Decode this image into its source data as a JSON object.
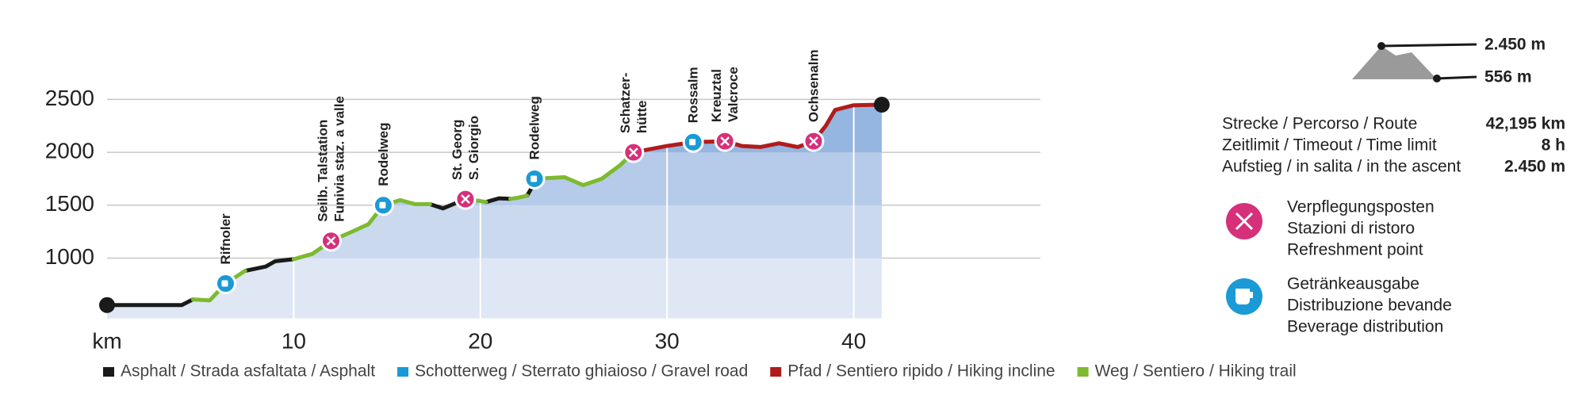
{
  "chart_data": {
    "type": "line",
    "x": [
      0,
      4,
      4.6,
      5.5,
      6.35,
      7.4,
      8.5,
      9,
      10,
      11,
      12,
      13,
      14,
      14.8,
      15.7,
      16.5,
      17.3,
      18,
      19.2,
      19.8,
      20.3,
      21,
      21.6,
      22,
      22.5,
      22.7,
      22.9,
      24.5,
      25.5,
      26.5,
      27.5,
      28.2,
      30,
      31.4,
      33.1,
      34,
      35,
      36,
      37,
      37.85,
      38.5,
      39,
      40,
      41.5
    ],
    "series": [
      {
        "name": "Asphalt / Strada asfaltata / Asphalt",
        "color": "#1a1a1a",
        "values": [
          556,
          556,
          610,
          null,
          null,
          880,
          920,
          970,
          990,
          null,
          null,
          null,
          null,
          null,
          null,
          null,
          1510,
          1470,
          1558,
          null,
          1530,
          1565,
          1560,
          null,
          1590,
          1650,
          1750,
          null,
          null,
          null,
          null,
          null,
          null,
          null,
          null,
          null,
          null,
          null,
          null,
          null,
          null,
          null,
          null,
          null
        ]
      },
      {
        "name": "Schotterweg / Sterrato ghiaioso / Gravel road",
        "color": "#1a9ad6",
        "values": [
          null,
          null,
          null,
          null,
          null,
          null,
          null,
          null,
          null,
          null,
          null,
          null,
          null,
          null,
          null,
          null,
          null,
          null,
          null,
          null,
          null,
          null,
          null,
          null,
          null,
          null,
          null,
          null,
          null,
          null,
          null,
          null,
          null,
          null,
          null,
          null,
          null,
          null,
          null,
          null,
          null,
          null,
          null,
          null
        ]
      },
      {
        "name": "Pfad / Sentiero ripido / Hiking incline",
        "color": "#b01c1c",
        "values": [
          null,
          null,
          null,
          null,
          null,
          null,
          null,
          null,
          null,
          null,
          null,
          null,
          null,
          null,
          null,
          null,
          null,
          null,
          null,
          null,
          null,
          null,
          null,
          null,
          null,
          null,
          null,
          null,
          null,
          null,
          null,
          2000,
          2060,
          2096,
          2105,
          2060,
          2050,
          2085,
          2050,
          2105,
          2250,
          2400,
          2445,
          2450
        ]
      },
      {
        "name": "Weg / Sentiero / Hiking trail",
        "color": "#7dba2f",
        "values": [
          null,
          null,
          610,
          600,
          760,
          880,
          null,
          null,
          990,
          1040,
          1163,
          1240,
          1320,
          1500,
          1548,
          1510,
          1510,
          null,
          1558,
          1545,
          1530,
          null,
          1560,
          1570,
          1590,
          null,
          1750,
          1765,
          1690,
          1750,
          1880,
          2000,
          null,
          null,
          null,
          null,
          null,
          null,
          null,
          null,
          null,
          null,
          null,
          null
        ]
      }
    ],
    "stations": [
      {
        "label": [
          "Rifnoler"
        ],
        "x": 6.35,
        "value": 760,
        "kind": "drink"
      },
      {
        "label": [
          "Seilb. Talstation",
          "Funivia staz. a valle"
        ],
        "x": 12,
        "value": 1163,
        "kind": "food"
      },
      {
        "label": [
          "Rodelweg"
        ],
        "x": 14.8,
        "value": 1500,
        "kind": "drink"
      },
      {
        "label": [
          "St. Georg",
          "S. Giorgio"
        ],
        "x": 19.2,
        "value": 1558,
        "kind": "food"
      },
      {
        "label": [
          "Rodelweg"
        ],
        "x": 22.9,
        "value": 1750,
        "kind": "drink"
      },
      {
        "label": [
          "Schatzer-",
          "hütte"
        ],
        "x": 28.2,
        "value": 2000,
        "kind": "food"
      },
      {
        "label": [
          "Rossalm"
        ],
        "x": 31.4,
        "value": 2096,
        "kind": "drink"
      },
      {
        "label": [
          "Kreuztal",
          "Valcroce"
        ],
        "x": 33.1,
        "value": 2105,
        "kind": "food"
      },
      {
        "label": [
          "Ochsenalm"
        ],
        "x": 37.85,
        "value": 2105,
        "kind": "food"
      }
    ],
    "xlim": [
      0,
      50
    ],
    "xticks": [
      {
        "value": 0,
        "label": "km"
      },
      10,
      20,
      30,
      40
    ],
    "ylim": [
      430,
      2750
    ],
    "yticks": [
      1000,
      1500,
      2000,
      2500
    ],
    "grid": true
  },
  "route_info": {
    "elevation": {
      "max": "2.450 m",
      "min": "556 m"
    },
    "rows": [
      [
        "Strecke / Percorso / Route",
        "42,195 km"
      ],
      [
        "Zeitlimit / Timeout / Time limit",
        "8 h"
      ],
      [
        "Aufstieg / in salita / in the ascent",
        "2.450 m"
      ]
    ],
    "icons": [
      {
        "lines": [
          "Verpflegungsposten",
          "Stazioni di ristoro",
          "Refreshment point"
        ]
      },
      {
        "lines": [
          "Getränkeausgabe",
          "Distribuzione bevande",
          "Beverage distribution"
        ]
      }
    ]
  }
}
